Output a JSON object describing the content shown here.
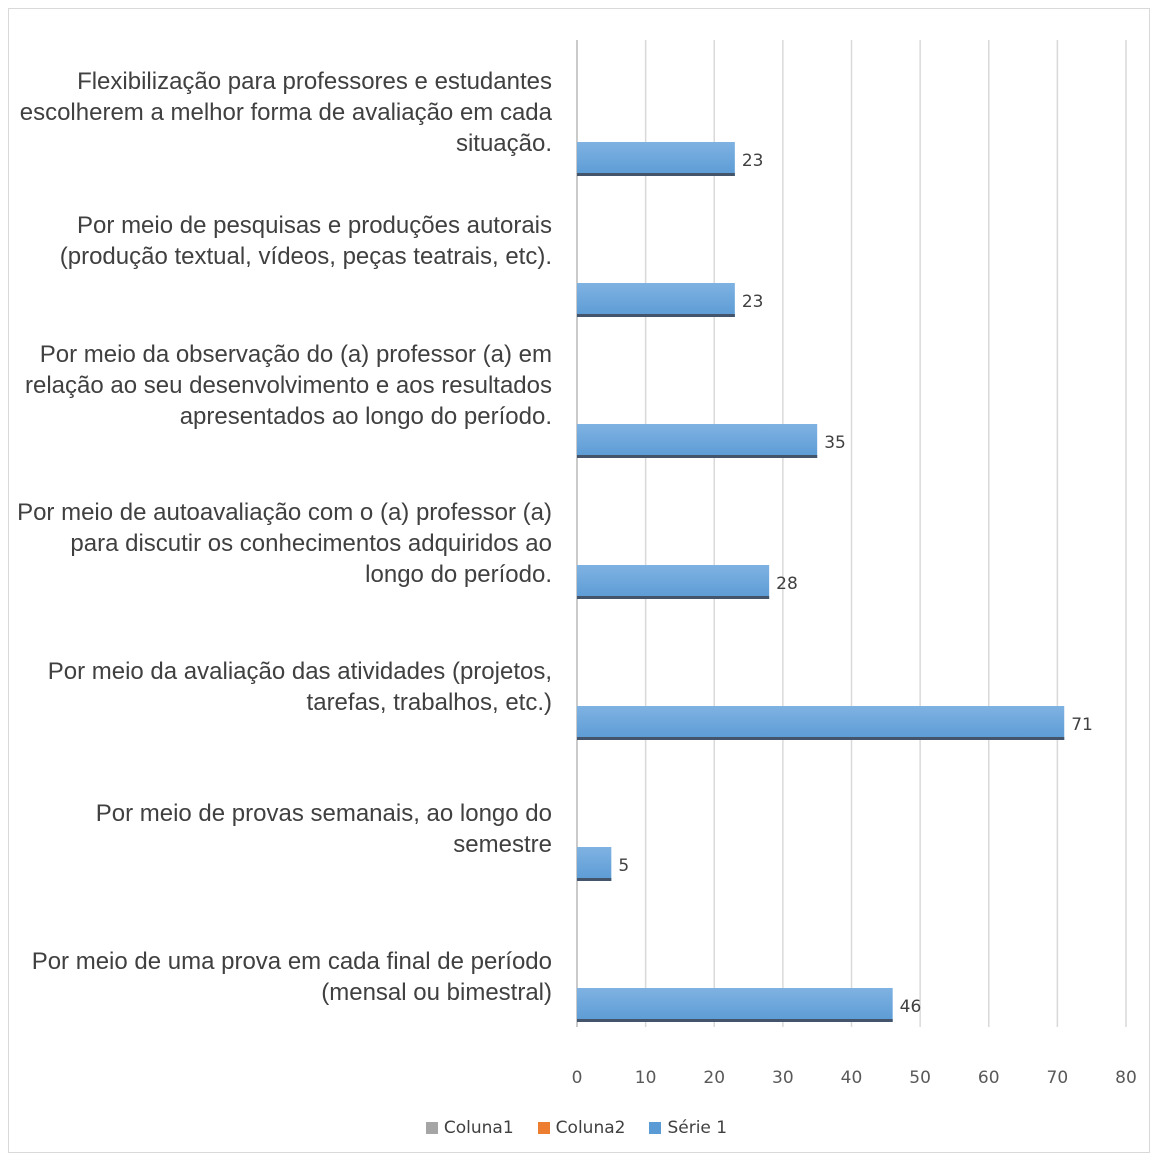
{
  "chart_data": {
    "type": "bar",
    "orientation": "horizontal",
    "categories": [
      "Por meio de uma prova em cada final de período (mensal ou bimestral)",
      "Por meio de provas semanais, ao longo do semestre",
      "Por meio da avaliação das atividades (projetos, tarefas, trabalhos, etc.)",
      "Por meio de autoavaliação com o (a) professor (a) para discutir os conhecimentos adquiridos ao longo do período.",
      "Por meio da observação do (a) professor (a) em relação ao seu desenvolvimento e aos resultados apresentados ao longo do período.",
      "Por meio de pesquisas e produções autorais (produção textual, vídeos, peças teatrais, etc).",
      "Flexibilização para professores e estudantes escolherem a melhor forma de avaliação em cada situação."
    ],
    "series": [
      {
        "name": "Coluna1",
        "color": "#a5a5a5",
        "values": [
          null,
          null,
          null,
          null,
          null,
          null,
          null
        ]
      },
      {
        "name": "Coluna2",
        "color": "#ed7d31",
        "values": [
          null,
          null,
          null,
          null,
          null,
          null,
          null
        ]
      },
      {
        "name": "Série 1",
        "color": "#5b9bd5",
        "values": [
          46,
          5,
          71,
          28,
          35,
          23,
          23
        ]
      }
    ],
    "data_labels": [
      "46",
      "5",
      "71",
      "28",
      "35",
      "23",
      "23"
    ],
    "xlim": [
      0,
      80
    ],
    "x_ticks": [
      "0",
      "10",
      "20",
      "30",
      "40",
      "50",
      "60",
      "70",
      "80"
    ],
    "grid": true,
    "legend_position": "bottom",
    "title": "",
    "xlabel": "",
    "ylabel": ""
  }
}
